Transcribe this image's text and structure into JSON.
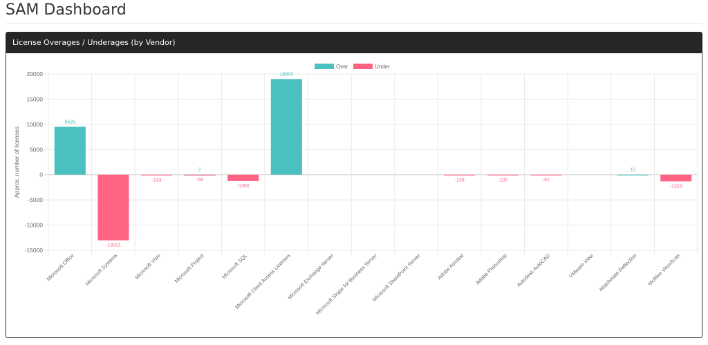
{
  "page": {
    "title": "SAM Dashboard"
  },
  "panel": {
    "title": "License Overages / Underages (by Vendor)"
  },
  "colors": {
    "over": "#4bc0c0",
    "under": "#ff6384",
    "grid": "#e8e8e8",
    "axis": "#666666"
  },
  "chart_data": {
    "type": "bar",
    "ylabel": "Approx. number of licenses",
    "ylim": [
      -15000,
      20000
    ],
    "yticks": [
      20000,
      15000,
      10000,
      5000,
      0,
      -5000,
      -10000,
      -15000
    ],
    "legend_position": "top",
    "grid": true,
    "categories": [
      "Microsoft Office",
      "Microsoft Systems",
      "Microsoft Visio",
      "Microsoft Project",
      "Microsoft SQL",
      "Microsoft Client Access Licenses",
      "Microsoft Exchange Server",
      "Microsoft Skype for Business Server",
      "Microsoft SharePoint Server",
      "Adobe Acrobat",
      "Adobe Photoshop",
      "Autodesk AutoCAD",
      "VMware View",
      "Attachmate Reflection",
      "McAfee VirusScan"
    ],
    "series": [
      {
        "name": "Over",
        "values": [
          9525,
          0,
          0,
          2,
          0,
          18993,
          0,
          0,
          0,
          0,
          0,
          0,
          0,
          10,
          0
        ]
      },
      {
        "name": "Under",
        "values": [
          0,
          -13021,
          -133,
          -56,
          -1260,
          0,
          0,
          0,
          0,
          -139,
          -100,
          -61,
          0,
          0,
          -1323
        ]
      }
    ],
    "labels": {
      "over": [
        "9525",
        "",
        "",
        "2",
        "",
        "18993",
        "",
        "",
        "",
        "",
        "",
        "",
        "",
        "10",
        ""
      ],
      "under": [
        "",
        "-13021",
        "-133",
        "-56",
        "-1260",
        "",
        "",
        "",
        "",
        "-139",
        "-100",
        "-61",
        "",
        "",
        "-1323"
      ]
    }
  }
}
